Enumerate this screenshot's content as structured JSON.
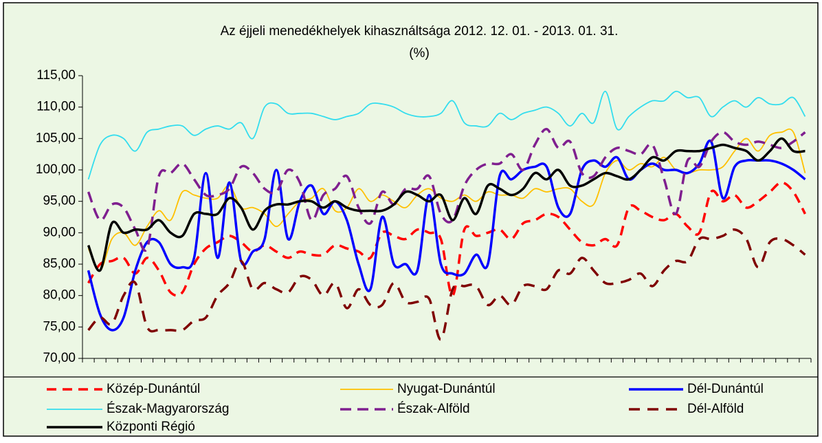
{
  "chart_data": {
    "type": "line",
    "title": "Az éjjeli menedékhelyek kihasználtsága 2012. 12. 01. - 2013. 01. 31.",
    "subtitle": "(%)",
    "categories": [
      null,
      null,
      null,
      null,
      null,
      null,
      null,
      null,
      null,
      null,
      null,
      null,
      null,
      null,
      null,
      null,
      null,
      null,
      null,
      null,
      null,
      null,
      null,
      null,
      null,
      null,
      null,
      null,
      null,
      null,
      null,
      null,
      null,
      null,
      null,
      null,
      null,
      null,
      null,
      null,
      null,
      null,
      null,
      null,
      null,
      null,
      null,
      null,
      null,
      null,
      null,
      null,
      null,
      null,
      null,
      null,
      null,
      null,
      null,
      null,
      null,
      null
    ],
    "ylim": [
      70,
      115
    ],
    "yticks": [
      {
        "value": 70,
        "label": "70,00"
      },
      {
        "value": 75,
        "label": "75,00"
      },
      {
        "value": 80,
        "label": "80,00"
      },
      {
        "value": 85,
        "label": "85,00"
      },
      {
        "value": 90,
        "label": "90,00"
      },
      {
        "value": 95,
        "label": "95,00"
      },
      {
        "value": 100,
        "label": "100,00"
      },
      {
        "value": 105,
        "label": "105,00"
      },
      {
        "value": 110,
        "label": "110,00"
      },
      {
        "value": 115,
        "label": "115,00"
      }
    ],
    "grid": false,
    "legend": "bottom",
    "series": [
      {
        "name": "Közép-Dunántúl",
        "color": "#ff0000",
        "dash": "14,9",
        "width": 3.5,
        "values": [
          82,
          85,
          85.5,
          86,
          83.5,
          86,
          84,
          80.5,
          80.5,
          85,
          87.5,
          88.5,
          89.5,
          88.5,
          87,
          88,
          87,
          86,
          87,
          86.5,
          86.5,
          88,
          87.5,
          87,
          86,
          90,
          89.5,
          89,
          90.5,
          90,
          89,
          80,
          90.5,
          89.5,
          90,
          90.5,
          89,
          91.5,
          92,
          93,
          92.5,
          90.5,
          88.5,
          88,
          89,
          88,
          94,
          93.5,
          92.5,
          92,
          93,
          91,
          90,
          96.5,
          95,
          96,
          94,
          95,
          96.5,
          98,
          96.5,
          93
        ]
      },
      {
        "name": "Nyugat-Dunántúl",
        "color": "#ffc000",
        "dash": "none",
        "width": 1.8,
        "values": [
          87.5,
          84,
          89,
          90,
          88,
          91,
          93.5,
          92,
          96.5,
          96,
          95.5,
          95.5,
          97.5,
          94,
          94,
          93,
          91,
          93,
          95,
          95.5,
          97,
          93.5,
          94,
          97,
          95,
          96,
          95,
          94,
          96,
          97,
          95.5,
          95,
          96,
          95,
          96.5,
          96,
          96,
          95.5,
          97,
          96.5,
          97,
          97,
          95,
          94.5,
          99.5,
          101.5,
          100,
          101,
          100.5,
          102,
          100,
          99.5,
          100,
          100,
          100.5,
          103,
          105,
          103,
          105.5,
          106,
          106,
          99.5
        ]
      },
      {
        "name": "Dél-Dunántúl",
        "color": "#0000ff",
        "dash": "none",
        "width": 3.5,
        "values": [
          84,
          77,
          74.5,
          76.5,
          84,
          88.5,
          88.5,
          85,
          84.5,
          86,
          99.5,
          86,
          98,
          85.5,
          87,
          89,
          100,
          89,
          95,
          97.5,
          93,
          95,
          92,
          85,
          81,
          92.5,
          85,
          85,
          84,
          96,
          85,
          83.5,
          83.5,
          86.5,
          85,
          99,
          98.5,
          100,
          100.5,
          100.5,
          94,
          93,
          100,
          101.5,
          100.5,
          102,
          98.5,
          100,
          101,
          100,
          100,
          99.5,
          101,
          104.5,
          95.5,
          100.5,
          101.5,
          101.5,
          101.5,
          101,
          100,
          98.5
        ]
      },
      {
        "name": "Észak-Magyarország",
        "color": "#33ddee",
        "dash": "none",
        "width": 1.8,
        "values": [
          98.5,
          104,
          105.5,
          105,
          103,
          106,
          106.5,
          107,
          107,
          105.5,
          106.5,
          107,
          106.5,
          107.5,
          105,
          110,
          110.5,
          109,
          109,
          109,
          108.5,
          108,
          108.5,
          109,
          110.5,
          110.5,
          110,
          109,
          108.5,
          108.5,
          109,
          111,
          107.5,
          107,
          107,
          109,
          108,
          109,
          109.5,
          110,
          109,
          107,
          109,
          107.5,
          112.5,
          106.5,
          108.5,
          110,
          111,
          111,
          112.5,
          111.5,
          111.5,
          108.5,
          110,
          111,
          110,
          111.5,
          110.5,
          110.5,
          111.5,
          108.5
        ]
      },
      {
        "name": "Észak-Alföld",
        "color": "#7f1f8f",
        "dash": "16,9",
        "width": 3.5,
        "values": [
          96.5,
          92,
          94.5,
          94,
          90.5,
          87.5,
          99,
          99.5,
          101,
          98.5,
          96,
          96,
          97,
          100.5,
          99.5,
          97,
          96.5,
          100,
          98,
          92,
          96,
          97,
          99,
          94,
          91.5,
          96.5,
          94.5,
          97,
          97,
          99,
          93,
          92,
          97.5,
          100,
          101,
          101,
          102.5,
          100,
          104,
          106.5,
          103.5,
          104.5,
          99.5,
          99,
          102,
          103.5,
          103,
          102.5,
          104,
          98.5,
          93,
          101.5,
          100.5,
          104.5,
          106,
          104.5,
          104,
          104.5,
          104,
          103.5,
          104.5,
          106
        ]
      },
      {
        "name": "Dél-Alföld",
        "color": "#7f0000",
        "dash": "16,11",
        "width": 3.5,
        "values": [
          74.5,
          76.5,
          75.5,
          80,
          82,
          75,
          74.5,
          74.5,
          74.5,
          76,
          76.5,
          80,
          82,
          85.5,
          81,
          82,
          81,
          80.5,
          83,
          82.5,
          80,
          82,
          78,
          81,
          78.5,
          78.5,
          82,
          79,
          79,
          79.5,
          73,
          81,
          81.5,
          81.5,
          78.5,
          80,
          78.5,
          81.5,
          81.5,
          81,
          84,
          83.5,
          86,
          84,
          82,
          82,
          82.5,
          83.5,
          81.5,
          84,
          85.5,
          85.5,
          89,
          89,
          89.5,
          90.5,
          89,
          84.5,
          88.5,
          89,
          88,
          86.5
        ]
      },
      {
        "name": "Központi Régió",
        "color": "#000000",
        "dash": "none",
        "width": 3.5,
        "values": [
          88,
          84,
          91.5,
          90,
          90.5,
          90.5,
          92,
          90,
          89.5,
          93,
          93,
          93,
          95.5,
          94,
          90.5,
          93.5,
          94.5,
          94.5,
          95,
          95,
          94,
          95,
          94,
          93.5,
          93.5,
          93.5,
          94.5,
          96.5,
          96,
          95,
          96,
          92,
          95.5,
          93,
          97.5,
          97,
          96,
          97,
          99.5,
          98.5,
          100,
          97.5,
          97.5,
          98.5,
          99.5,
          99,
          98.5,
          100,
          102,
          101.5,
          103,
          103,
          103,
          103.5,
          104,
          103.5,
          103,
          101.5,
          103,
          105,
          103,
          103
        ]
      }
    ]
  }
}
